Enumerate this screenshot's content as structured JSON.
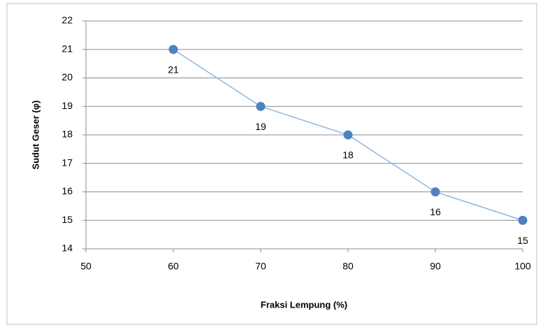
{
  "chart_data": {
    "type": "scatter",
    "x_label": "Fraksi Lempung (%)",
    "y_label": "Sudut Geser (φ)",
    "x": [
      60,
      70,
      80,
      90,
      100
    ],
    "series": [
      {
        "color": "#4f81bd",
        "values": [
          21,
          19,
          18,
          16,
          15
        ]
      }
    ],
    "xlim": [
      50,
      100
    ],
    "xticks": [
      50,
      60,
      70,
      80,
      90,
      100
    ],
    "ylim": [
      14,
      22
    ],
    "yticks": [
      14,
      15,
      16,
      17,
      18,
      19,
      20,
      21,
      22
    ],
    "grid": true,
    "line_color": "#8eb4e3"
  }
}
